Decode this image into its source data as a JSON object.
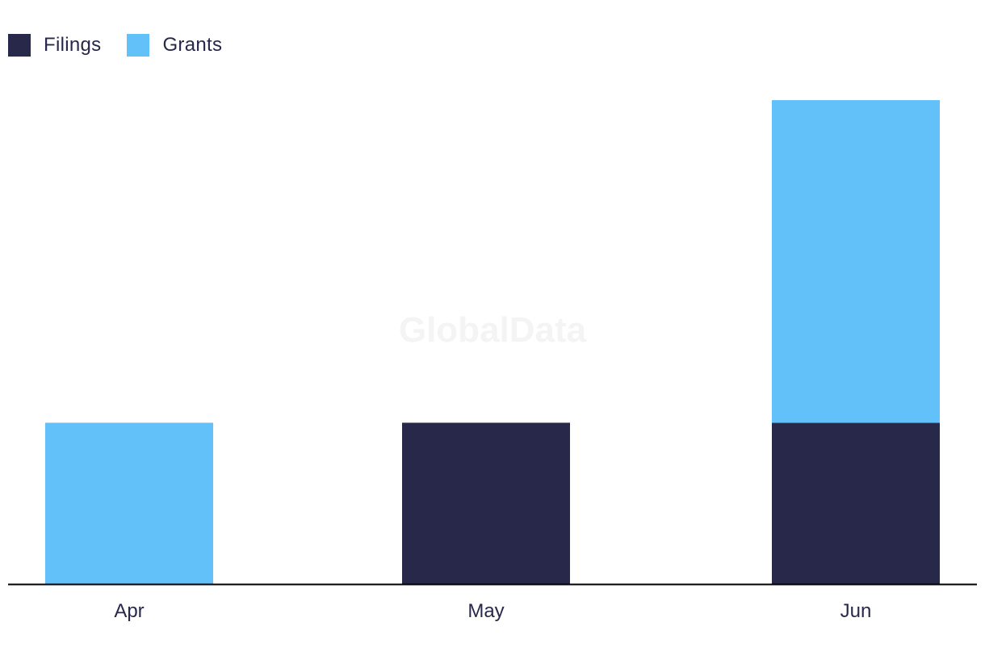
{
  "legend": [
    {
      "label": "Filings",
      "color": "#27284a"
    },
    {
      "label": "Grants",
      "color": "#63c1f9"
    }
  ],
  "watermark": "GlobalData",
  "chart_data": {
    "type": "bar",
    "stacked": true,
    "categories": [
      "Apr",
      "May",
      "Jun"
    ],
    "series": [
      {
        "name": "Filings",
        "color": "#27284a",
        "values": [
          0,
          1,
          1
        ]
      },
      {
        "name": "Grants",
        "color": "#63c1f9",
        "values": [
          1,
          0,
          2
        ]
      }
    ],
    "title": "",
    "xlabel": "",
    "ylabel": "",
    "ylim": [
      0,
      3
    ],
    "grid": false,
    "legend_position": "top-left"
  }
}
